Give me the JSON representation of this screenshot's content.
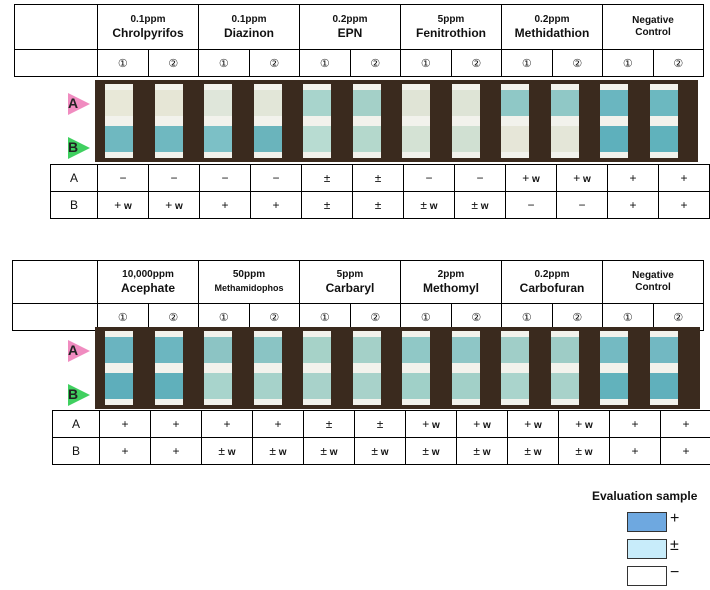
{
  "panels": [
    {
      "compounds": [
        {
          "conc": "0.1ppm",
          "name": "Chrolpyrifos"
        },
        {
          "conc": "0.1ppm",
          "name": "Diazinon"
        },
        {
          "conc": "0.2ppm",
          "name": "EPN"
        },
        {
          "conc": "5ppm",
          "name": "Fenitrothion"
        },
        {
          "conc": "0.2ppm",
          "name": "Methidathion"
        },
        {
          "conc": "Negative",
          "name": "Control",
          "negative": true
        }
      ],
      "replicate_labels": [
        "①",
        "②"
      ],
      "rows": [
        {
          "label": "A",
          "values": [
            [
              "−",
              ""
            ],
            [
              "−",
              ""
            ],
            [
              "−",
              ""
            ],
            [
              "−",
              ""
            ],
            [
              "±",
              ""
            ],
            [
              "±",
              ""
            ],
            [
              "−",
              ""
            ],
            [
              "−",
              ""
            ],
            [
              "+",
              "w"
            ],
            [
              "+",
              "w"
            ],
            [
              "+",
              ""
            ],
            [
              "+",
              ""
            ]
          ]
        },
        {
          "label": "B",
          "values": [
            [
              "+",
              "w"
            ],
            [
              "+",
              "w"
            ],
            [
              "+",
              ""
            ],
            [
              "+",
              ""
            ],
            [
              "±",
              ""
            ],
            [
              "±",
              ""
            ],
            [
              "±",
              "w"
            ],
            [
              "±",
              "w"
            ],
            [
              "−",
              ""
            ],
            [
              "−",
              ""
            ],
            [
              "+",
              ""
            ],
            [
              "+",
              ""
            ]
          ]
        }
      ]
    },
    {
      "compounds": [
        {
          "conc": "10,000ppm",
          "name": "Acephate"
        },
        {
          "conc": "50ppm",
          "name": "Methamidophos",
          "small": true
        },
        {
          "conc": "5ppm",
          "name": "Carbaryl"
        },
        {
          "conc": "2ppm",
          "name": "Methomyl"
        },
        {
          "conc": "0.2ppm",
          "name": "Carbofuran"
        },
        {
          "conc": "Negative",
          "name": "Control",
          "negative": true
        }
      ],
      "replicate_labels": [
        "①",
        "②"
      ],
      "rows": [
        {
          "label": "A",
          "values": [
            [
              "+",
              ""
            ],
            [
              "+",
              ""
            ],
            [
              "+",
              ""
            ],
            [
              "+",
              ""
            ],
            [
              "±",
              ""
            ],
            [
              "±",
              ""
            ],
            [
              "+",
              "w"
            ],
            [
              "+",
              "w"
            ],
            [
              "+",
              "w"
            ],
            [
              "+",
              "w"
            ],
            [
              "+",
              ""
            ],
            [
              "+",
              ""
            ]
          ]
        },
        {
          "label": "B",
          "values": [
            [
              "+",
              ""
            ],
            [
              "+",
              ""
            ],
            [
              "±",
              "w"
            ],
            [
              "±",
              "w"
            ],
            [
              "±",
              "w"
            ],
            [
              "±",
              "w"
            ],
            [
              "±",
              "w"
            ],
            [
              "±",
              "w"
            ],
            [
              "±",
              "w"
            ],
            [
              "±",
              "w"
            ],
            [
              "+",
              ""
            ],
            [
              "+",
              ""
            ]
          ]
        }
      ]
    }
  ],
  "strip_colors": {
    "panel1": [
      [
        "#e8e8d8",
        "#6fb8c0"
      ],
      [
        "#e6e6d6",
        "#6fb8c0"
      ],
      [
        "#dfe6da",
        "#7cc0c6"
      ],
      [
        "#e2e6d8",
        "#6ab4bc"
      ],
      [
        "#a8d4cc",
        "#b8dcd2"
      ],
      [
        "#a4d0c8",
        "#b4d8cc"
      ],
      [
        "#e0e4d6",
        "#d4e2d4"
      ],
      [
        "#dee4d6",
        "#d0e0d2"
      ],
      [
        "#8fc8c6",
        "#e6e6d8"
      ],
      [
        "#90c8c6",
        "#e4e6d8"
      ],
      [
        "#6ab6c0",
        "#5eb0bc"
      ],
      [
        "#6cb8c0",
        "#60b2bc"
      ]
    ],
    "panel2": [
      [
        "#6ab4c0",
        "#5eaebb"
      ],
      [
        "#6cb6c0",
        "#60b0bb"
      ],
      [
        "#8cc4c4",
        "#a8d4cc"
      ],
      [
        "#8ac4c4",
        "#a6d2ca"
      ],
      [
        "#a6d2c8",
        "#a8d2ca"
      ],
      [
        "#a4d0c8",
        "#a8d2ca"
      ],
      [
        "#90c8c6",
        "#a0d0c8"
      ],
      [
        "#8ec6c6",
        "#a2d0c8"
      ],
      [
        "#a0cec8",
        "#aad4cc"
      ],
      [
        "#9eccc6",
        "#a8d2ca"
      ],
      [
        "#74bac2",
        "#62b2bc"
      ],
      [
        "#72b8c2",
        "#60b0bc"
      ]
    ]
  },
  "markers": {
    "a": "A",
    "b": "B",
    "a_color": "#f08cc0",
    "b_color": "#40d060"
  },
  "legend": {
    "title": "Evaluation sample",
    "items": [
      {
        "color": "#6ea8e0",
        "symbol": "+"
      },
      {
        "color": "#c8ecfa",
        "symbol": "±"
      },
      {
        "color": "#ffffff",
        "symbol": "−"
      }
    ]
  }
}
